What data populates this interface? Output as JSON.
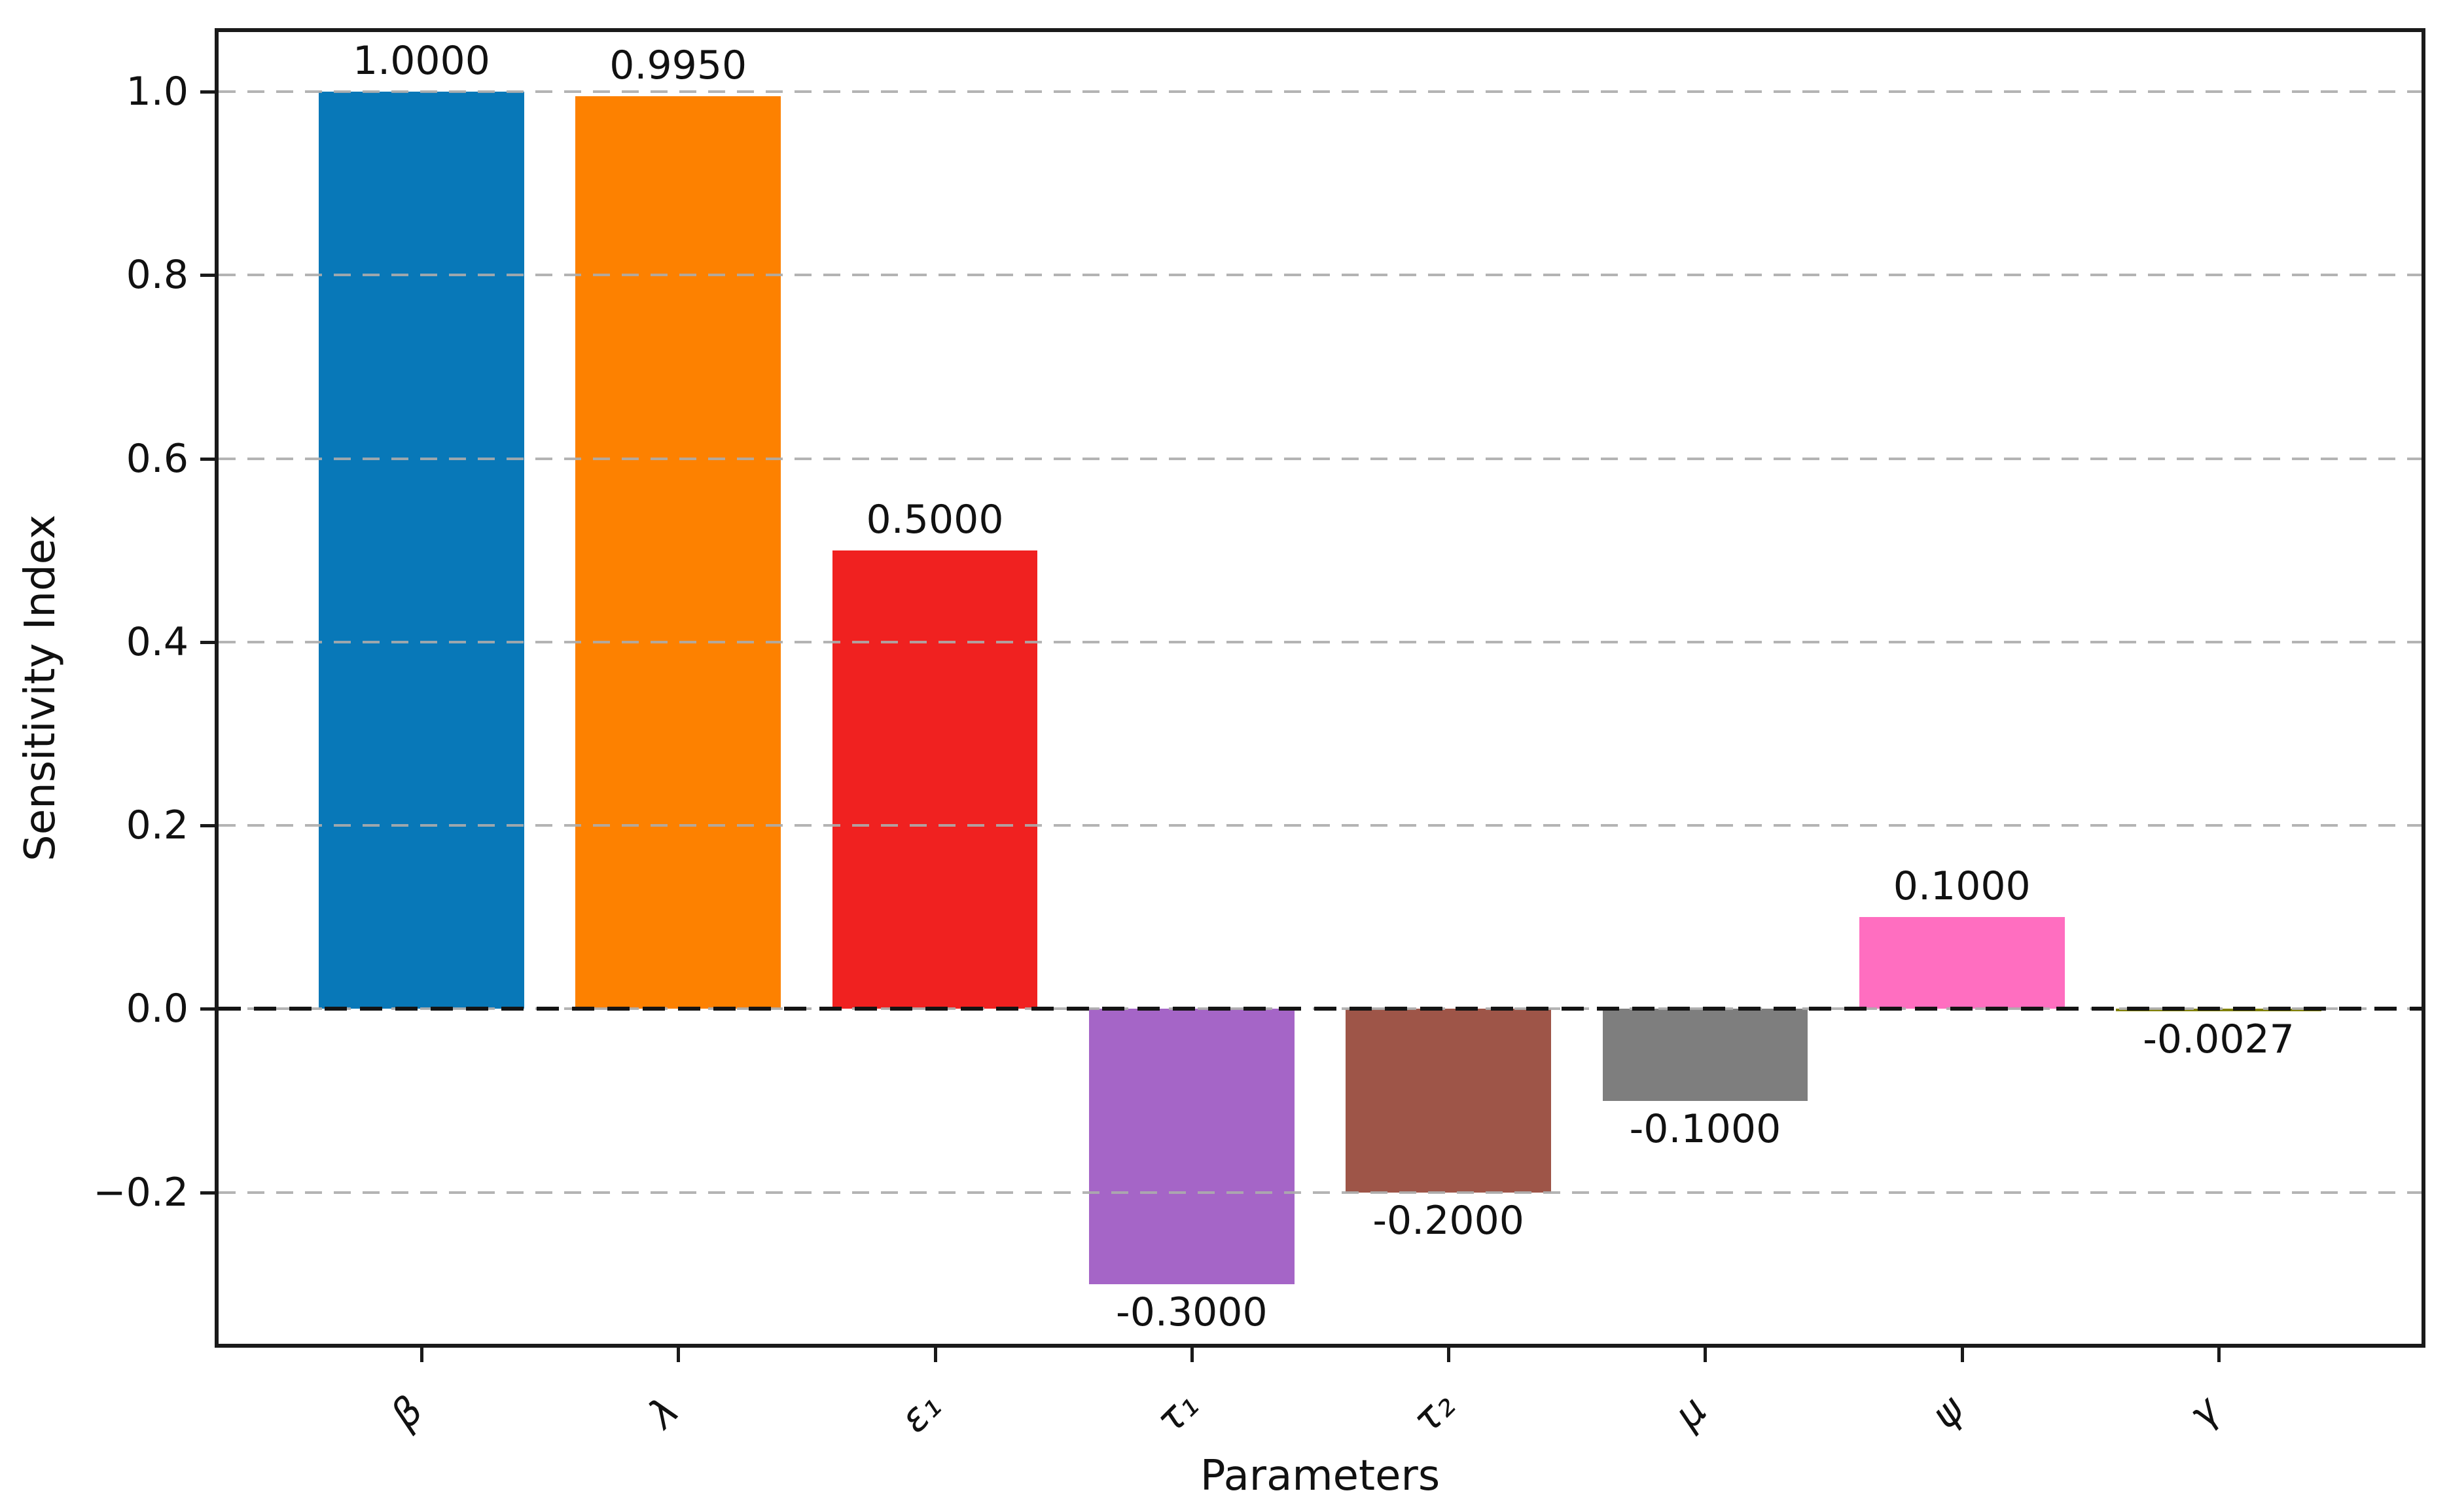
{
  "chart_data": {
    "type": "bar",
    "title": "",
    "xlabel": "Parameters",
    "ylabel": "Sensitivity Index",
    "categories": [
      "β",
      "λ",
      "ε₁",
      "τ₁",
      "τ₂",
      "μ",
      "ψ",
      "γ"
    ],
    "values": [
      1.0,
      0.995,
      0.5,
      -0.3,
      -0.2,
      -0.1,
      0.1,
      -0.0027
    ],
    "bar_labels": [
      "1.0000",
      "0.9950",
      "0.5000",
      "-0.3000",
      "-0.2000",
      "-0.1000",
      "0.1000",
      "-0.0027"
    ],
    "bar_colors": [
      "#0878b8",
      "#fd8100",
      "#f02120",
      "#a565c7",
      "#9e5548",
      "#7e7e7e",
      "#ff6ec0",
      "#808000"
    ],
    "yticks": [
      1.0,
      0.8,
      0.6,
      0.4,
      0.2,
      0.0,
      -0.2
    ],
    "ytick_labels": [
      "1.0",
      "0.8",
      "0.6",
      "0.4",
      "0.2",
      "0.0",
      "−0.2"
    ],
    "ylim": [
      -0.365,
      1.065
    ],
    "grid": "horizontal dashed gray lines at each 0.2 tick, drawn over bars",
    "zero_line": "black dashed horizontal line at y=0",
    "legend": "none"
  }
}
